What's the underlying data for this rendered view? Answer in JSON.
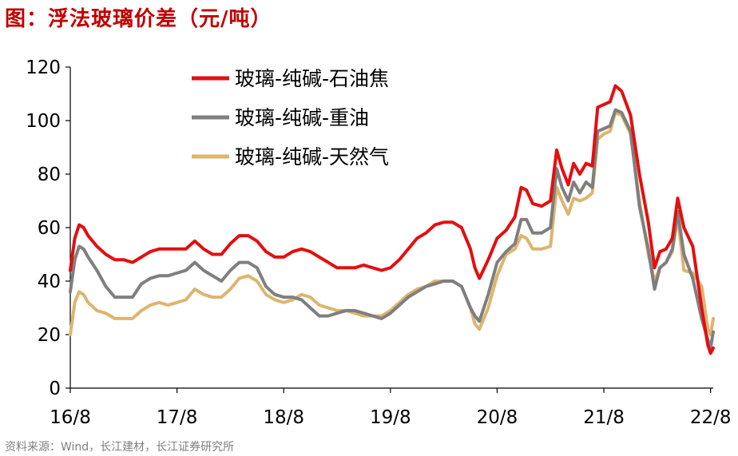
{
  "header": {
    "title": "图：浮法玻璃价差（元/吨）"
  },
  "footer": {
    "source": "资料来源：Wind，长江建材，长江证券研究所"
  },
  "chart_data": {
    "type": "line",
    "title": "图：浮法玻璃价差（元/吨）",
    "xlabel": "",
    "ylabel": "",
    "ylim": [
      0,
      120
    ],
    "yticks": [
      0,
      20,
      40,
      60,
      80,
      100,
      120
    ],
    "x_range": [
      0,
      72.3
    ],
    "x_unit": "months since 2016-08",
    "xtick_labels": [
      {
        "label": "16/8",
        "x": 0
      },
      {
        "label": "17/8",
        "x": 12
      },
      {
        "label": "18/8",
        "x": 24
      },
      {
        "label": "19/8",
        "x": 36
      },
      {
        "label": "20/8",
        "x": 48
      },
      {
        "label": "21/8",
        "x": 60
      },
      {
        "label": "22/8",
        "x": 72
      }
    ],
    "grid": false,
    "legend_position": "top-center",
    "series": [
      {
        "name": "玻璃-纯碱-石油焦",
        "color": "#e30f10",
        "points": [
          [
            0,
            44
          ],
          [
            0.5,
            56
          ],
          [
            1,
            61
          ],
          [
            1.5,
            60
          ],
          [
            2,
            57
          ],
          [
            3,
            53
          ],
          [
            4,
            50
          ],
          [
            5,
            48
          ],
          [
            6,
            48
          ],
          [
            7,
            47
          ],
          [
            8,
            49
          ],
          [
            9,
            51
          ],
          [
            10,
            52
          ],
          [
            11,
            52
          ],
          [
            12,
            52
          ],
          [
            13,
            52
          ],
          [
            14,
            55
          ],
          [
            15,
            52
          ],
          [
            16,
            50
          ],
          [
            17,
            50
          ],
          [
            18,
            54
          ],
          [
            19,
            57
          ],
          [
            20,
            57
          ],
          [
            21,
            55
          ],
          [
            22,
            51
          ],
          [
            23,
            49
          ],
          [
            24,
            49
          ],
          [
            25,
            51
          ],
          [
            26,
            52
          ],
          [
            27,
            51
          ],
          [
            28,
            49
          ],
          [
            29,
            47
          ],
          [
            30,
            45
          ],
          [
            31,
            45
          ],
          [
            32,
            45
          ],
          [
            33,
            46
          ],
          [
            34,
            45
          ],
          [
            35,
            44
          ],
          [
            36,
            45
          ],
          [
            37,
            48
          ],
          [
            38,
            52
          ],
          [
            39,
            56
          ],
          [
            40,
            58
          ],
          [
            41,
            61
          ],
          [
            42,
            62
          ],
          [
            43,
            62
          ],
          [
            44,
            60
          ],
          [
            45,
            52
          ],
          [
            45.5,
            45
          ],
          [
            46,
            41
          ],
          [
            47,
            48
          ],
          [
            48,
            56
          ],
          [
            49,
            59
          ],
          [
            50,
            64
          ],
          [
            50.7,
            75
          ],
          [
            51.3,
            74
          ],
          [
            52,
            69
          ],
          [
            53,
            68
          ],
          [
            54,
            70
          ],
          [
            54.7,
            89
          ],
          [
            55.3,
            82
          ],
          [
            56,
            76
          ],
          [
            56.6,
            84
          ],
          [
            57.3,
            80
          ],
          [
            58,
            84
          ],
          [
            58.7,
            83
          ],
          [
            59.3,
            105
          ],
          [
            60,
            106
          ],
          [
            60.7,
            107
          ],
          [
            61.3,
            113
          ],
          [
            62,
            111
          ],
          [
            63,
            102
          ],
          [
            64,
            80
          ],
          [
            65,
            62
          ],
          [
            65.7,
            45
          ],
          [
            66.3,
            51
          ],
          [
            67,
            52
          ],
          [
            67.7,
            56
          ],
          [
            68.3,
            71
          ],
          [
            69,
            60
          ],
          [
            70,
            53
          ],
          [
            71,
            30
          ],
          [
            71.7,
            16
          ],
          [
            72,
            13
          ],
          [
            72.3,
            15
          ]
        ]
      },
      {
        "name": "玻璃-纯碱-重油",
        "color": "#7f7f7f",
        "points": [
          [
            0,
            36
          ],
          [
            0.5,
            48
          ],
          [
            1,
            53
          ],
          [
            1.5,
            52
          ],
          [
            2,
            49
          ],
          [
            3,
            44
          ],
          [
            4,
            38
          ],
          [
            5,
            34
          ],
          [
            6,
            34
          ],
          [
            7,
            34
          ],
          [
            8,
            39
          ],
          [
            9,
            41
          ],
          [
            10,
            42
          ],
          [
            11,
            42
          ],
          [
            12,
            43
          ],
          [
            13,
            44
          ],
          [
            14,
            47
          ],
          [
            15,
            44
          ],
          [
            16,
            42
          ],
          [
            17,
            40
          ],
          [
            18,
            44
          ],
          [
            19,
            47
          ],
          [
            20,
            47
          ],
          [
            21,
            45
          ],
          [
            22,
            38
          ],
          [
            23,
            35
          ],
          [
            24,
            34
          ],
          [
            25,
            34
          ],
          [
            26,
            33
          ],
          [
            27,
            30
          ],
          [
            28,
            27
          ],
          [
            29,
            27
          ],
          [
            30,
            28
          ],
          [
            31,
            29
          ],
          [
            32,
            29
          ],
          [
            33,
            28
          ],
          [
            34,
            27
          ],
          [
            35,
            26
          ],
          [
            36,
            28
          ],
          [
            37,
            31
          ],
          [
            38,
            34
          ],
          [
            39,
            36
          ],
          [
            40,
            38
          ],
          [
            41,
            39
          ],
          [
            42,
            40
          ],
          [
            43,
            40
          ],
          [
            44,
            38
          ],
          [
            45,
            30
          ],
          [
            45.5,
            27
          ],
          [
            46,
            25
          ],
          [
            47,
            35
          ],
          [
            48,
            47
          ],
          [
            49,
            51
          ],
          [
            50,
            54
          ],
          [
            50.7,
            63
          ],
          [
            51.3,
            63
          ],
          [
            52,
            58
          ],
          [
            53,
            58
          ],
          [
            54,
            60
          ],
          [
            54.7,
            82
          ],
          [
            55.3,
            75
          ],
          [
            56,
            70
          ],
          [
            56.6,
            77
          ],
          [
            57.3,
            73
          ],
          [
            58,
            77
          ],
          [
            58.7,
            75
          ],
          [
            59.3,
            96
          ],
          [
            60,
            97
          ],
          [
            60.7,
            98
          ],
          [
            61.3,
            104
          ],
          [
            62,
            103
          ],
          [
            63,
            96
          ],
          [
            64,
            68
          ],
          [
            65,
            52
          ],
          [
            65.7,
            37
          ],
          [
            66.3,
            45
          ],
          [
            67,
            47
          ],
          [
            67.7,
            52
          ],
          [
            68.3,
            66
          ],
          [
            69,
            50
          ],
          [
            70,
            41
          ],
          [
            71,
            26
          ],
          [
            71.7,
            18
          ],
          [
            72,
            15
          ],
          [
            72.3,
            21
          ]
        ]
      },
      {
        "name": "玻璃-纯碱-天然气",
        "color": "#ddb56e",
        "points": [
          [
            0,
            20
          ],
          [
            0.5,
            32
          ],
          [
            1,
            36
          ],
          [
            1.5,
            35
          ],
          [
            2,
            32
          ],
          [
            3,
            29
          ],
          [
            4,
            28
          ],
          [
            5,
            26
          ],
          [
            6,
            26
          ],
          [
            7,
            26
          ],
          [
            8,
            29
          ],
          [
            9,
            31
          ],
          [
            10,
            32
          ],
          [
            11,
            31
          ],
          [
            12,
            32
          ],
          [
            13,
            33
          ],
          [
            14,
            37
          ],
          [
            15,
            35
          ],
          [
            16,
            34
          ],
          [
            17,
            34
          ],
          [
            18,
            37
          ],
          [
            19,
            41
          ],
          [
            20,
            42
          ],
          [
            21,
            40
          ],
          [
            22,
            35
          ],
          [
            23,
            33
          ],
          [
            24,
            32
          ],
          [
            25,
            33
          ],
          [
            26,
            35
          ],
          [
            27,
            34
          ],
          [
            28,
            31
          ],
          [
            29,
            30
          ],
          [
            30,
            29
          ],
          [
            31,
            29
          ],
          [
            32,
            28
          ],
          [
            33,
            27
          ],
          [
            34,
            27
          ],
          [
            35,
            27
          ],
          [
            36,
            29
          ],
          [
            37,
            32
          ],
          [
            38,
            35
          ],
          [
            39,
            37
          ],
          [
            40,
            38
          ],
          [
            41,
            40
          ],
          [
            42,
            40
          ],
          [
            43,
            40
          ],
          [
            44,
            38
          ],
          [
            45,
            30
          ],
          [
            45.5,
            24
          ],
          [
            46,
            22
          ],
          [
            47,
            30
          ],
          [
            48,
            42
          ],
          [
            49,
            50
          ],
          [
            50,
            52
          ],
          [
            50.7,
            57
          ],
          [
            51.3,
            56
          ],
          [
            52,
            52
          ],
          [
            53,
            52
          ],
          [
            54,
            53
          ],
          [
            54.7,
            75
          ],
          [
            55.3,
            70
          ],
          [
            56,
            65
          ],
          [
            56.6,
            71
          ],
          [
            57.3,
            70
          ],
          [
            58,
            71
          ],
          [
            58.7,
            73
          ],
          [
            59.3,
            93
          ],
          [
            60,
            95
          ],
          [
            60.7,
            96
          ],
          [
            61.3,
            103
          ],
          [
            62,
            102
          ],
          [
            63,
            95
          ],
          [
            64,
            70
          ],
          [
            65,
            50
          ],
          [
            65.7,
            40
          ],
          [
            66.3,
            45
          ],
          [
            67,
            47
          ],
          [
            67.7,
            51
          ],
          [
            68.3,
            64
          ],
          [
            69,
            44
          ],
          [
            70,
            43
          ],
          [
            71,
            38
          ],
          [
            71.7,
            22
          ],
          [
            72,
            20
          ],
          [
            72.3,
            26
          ]
        ]
      }
    ]
  }
}
